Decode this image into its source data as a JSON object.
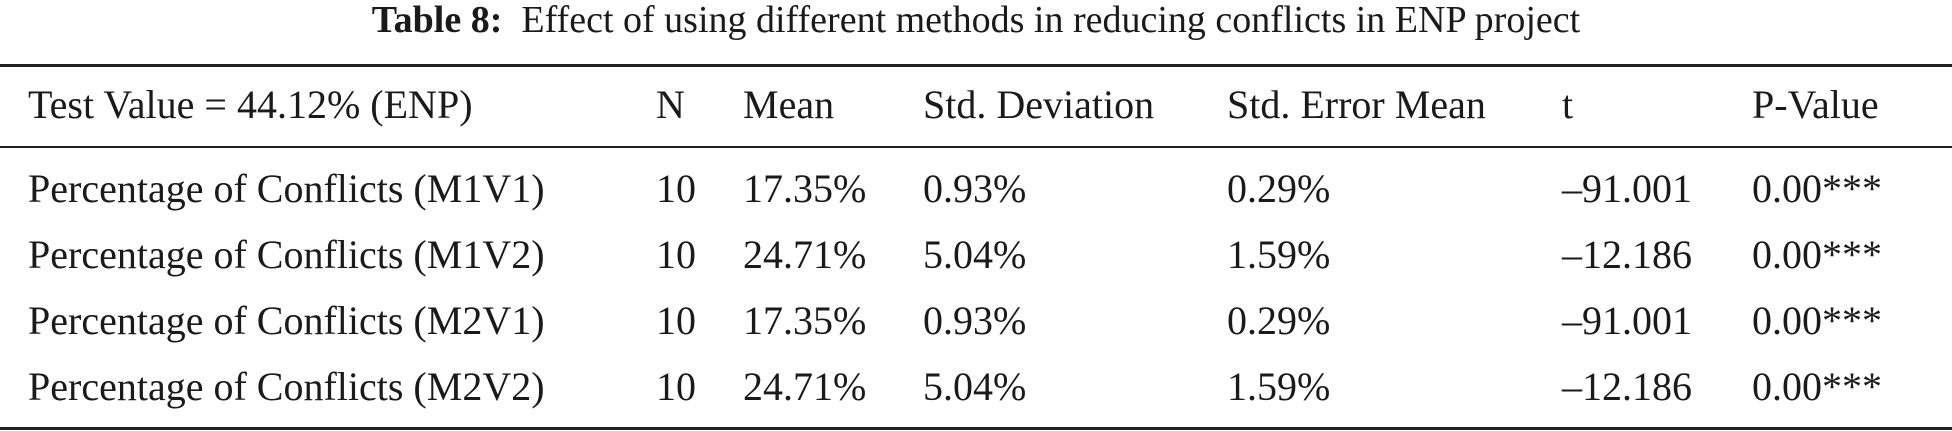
{
  "caption": {
    "label": "Table 8:",
    "text": "Effect of using different methods in reducing conflicts in ENP project"
  },
  "table": {
    "headers": [
      "Test Value = 44.12% (ENP)",
      "N",
      "Mean",
      "Std. Deviation",
      "Std. Error Mean",
      "t",
      "P-Value"
    ],
    "rows": [
      [
        "Percentage of Conflicts (M1V1)",
        "10",
        "17.35%",
        "0.93%",
        "0.29%",
        "–91.001",
        "0.00***"
      ],
      [
        "Percentage of Conflicts (M1V2)",
        "10",
        "24.71%",
        "5.04%",
        "1.59%",
        "–12.186",
        "0.00***"
      ],
      [
        "Percentage of Conflicts (M2V1)",
        "10",
        "17.35%",
        "0.93%",
        "0.29%",
        "–91.001",
        "0.00***"
      ],
      [
        "Percentage of Conflicts (M2V2)",
        "10",
        "24.71%",
        "5.04%",
        "1.59%",
        "–12.186",
        "0.00***"
      ]
    ]
  }
}
